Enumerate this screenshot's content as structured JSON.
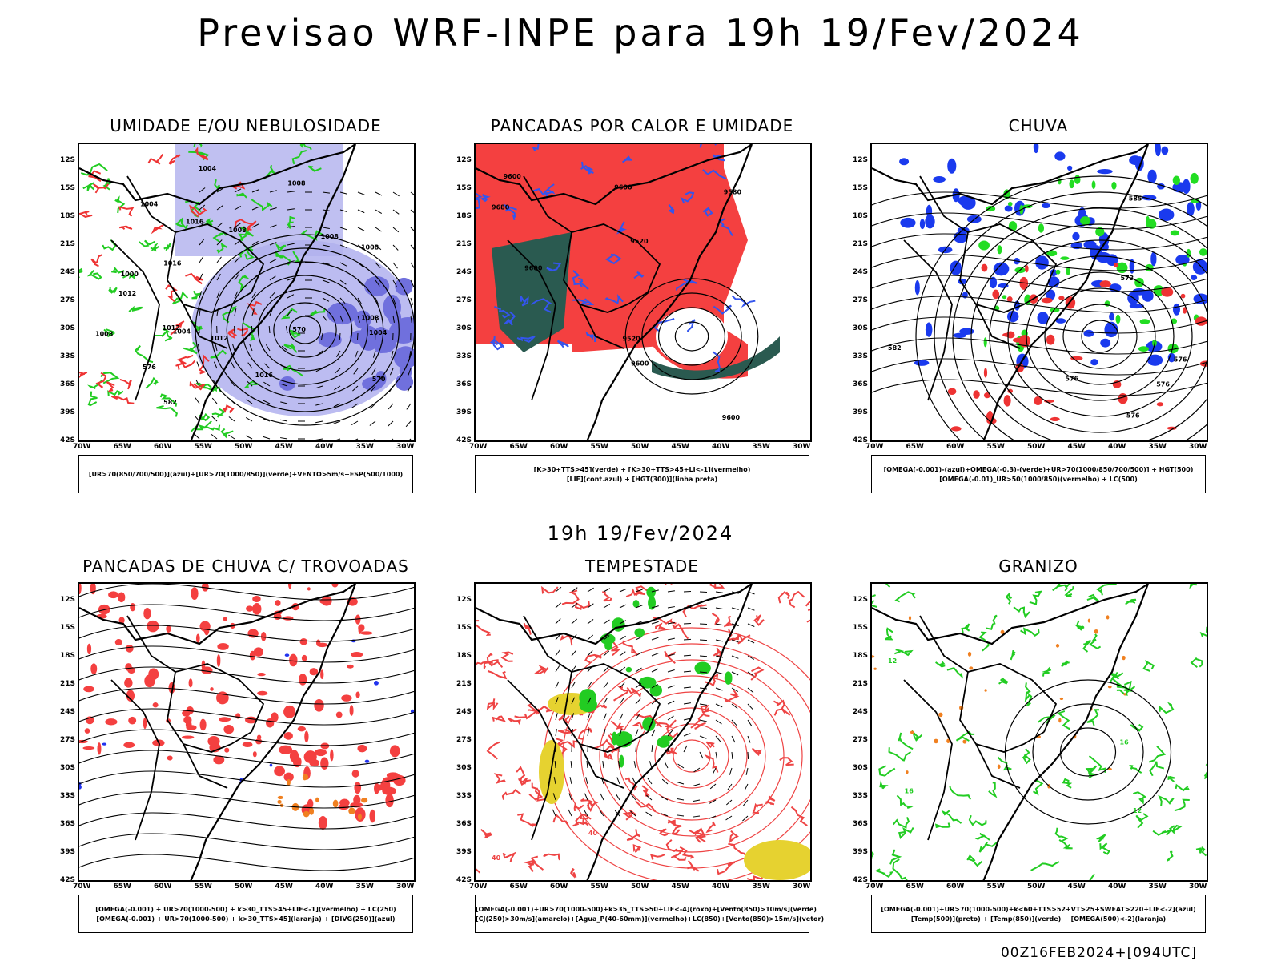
{
  "title": "Previsao WRF-INPE  para 19h 19/Fev/2024",
  "mid_title": "19h 19/Fev/2024",
  "footer": "00Z16FEB2024+[094UTC]",
  "lat_labels": [
    "12S",
    "15S",
    "18S",
    "21S",
    "24S",
    "27S",
    "30S",
    "33S",
    "36S",
    "39S",
    "42S"
  ],
  "lon_labels": [
    "70W",
    "65W",
    "60W",
    "55W",
    "50W",
    "45W",
    "40W",
    "35W",
    "30W"
  ],
  "panels": [
    {
      "title": "UMIDADE E/OU NEBULOSIDADE",
      "legend": [
        "[UR>70(850/700/500)](azul)+[UR>70(1000/850)](verde)+VENTO>5m/s+ESP(500/1000)"
      ],
      "contour_labels": [
        "1008",
        "1008",
        "1008",
        "1016",
        "1012",
        "1008",
        "1004",
        "1004",
        "1004",
        "1008",
        "1000",
        "1004",
        "1012",
        "1008",
        "1012",
        "1016",
        "1016",
        "570",
        "576",
        "570",
        "582"
      ],
      "colors": {
        "blue": "#b0b0ee",
        "green": "#22cc22",
        "red": "#ee3333"
      }
    },
    {
      "title": "PANCADAS POR CALOR E UMIDADE",
      "legend": [
        "[K>30+TTS>45](verde) + [K>30+TTS>45+LI<-1](vermelho)",
        "[LIF](cont.azul) + [HGT(300)](linha preta)"
      ],
      "contour_labels": [
        "9680",
        "9580",
        "9600",
        "9600",
        "9600",
        "9520",
        "9520",
        "9600",
        "9600"
      ],
      "colors": {
        "red": "#f44040",
        "teal": "#2a5a50",
        "blue": "#3355ee"
      }
    },
    {
      "title": "CHUVA",
      "legend": [
        "[OMEGA(-0.001)-(azul)+OMEGA(-0.3)-(verde)+UR>70(1000/850/700/500)] + HGT(500)",
        "[OMEGA(-0.01)_UR>50(1000/850)(vermelho) + LC(500)"
      ],
      "contour_labels": [
        "582",
        "576",
        "576",
        "576",
        "585",
        "576",
        "573"
      ],
      "colors": {
        "blue": "#1a3aee",
        "green": "#22dd22",
        "red": "#ee3333"
      }
    },
    {
      "title": "PANCADAS DE CHUVA C/ TROVOADAS",
      "legend": [
        "[OMEGA(-0.001) + UR>70(1000-500) + k>30_TTS>45+LIF<-1](vermelho) + LC(250)",
        "[OMEGA(-0.001) + UR>70(1000-500) + k>30_TTS>45](laranja) + [DIVG(250)](azul)"
      ],
      "colors": {
        "red": "#f44040",
        "orange": "#f08020",
        "blue": "#2233ee"
      }
    },
    {
      "title": "TEMPESTADE",
      "legend": [
        "[OMEGA(-0.001)+UR>70(1000-500)+k>35_TTS>50+LIF<-4](roxo)+[Vento(850)>10m/s](verde)",
        "[CJ(250)>30m/s](amarelo)+[Agua_P(40-60mm)](vermelho)+LC(850)+[Vento(850)>15m/s](vetor)"
      ],
      "contour_labels": [
        "40",
        "40"
      ],
      "colors": {
        "red": "#ee4444",
        "yellow": "#e6d230",
        "green": "#22cc22"
      }
    },
    {
      "title": "GRANIZO",
      "legend": [
        "[OMEGA(-0.001)+UR>70(1000-500)+k<60+TTS>52+VT>25+SWEAT>220+LIF<-2](azul)",
        "[Temp(500)](preto) + [Temp(850)](verde) + [OMEGA(500)<-2](laranja)"
      ],
      "contour_labels": [
        "12",
        "12",
        "16",
        "16"
      ],
      "colors": {
        "green": "#22cc22",
        "orange": "#f08020"
      }
    }
  ]
}
